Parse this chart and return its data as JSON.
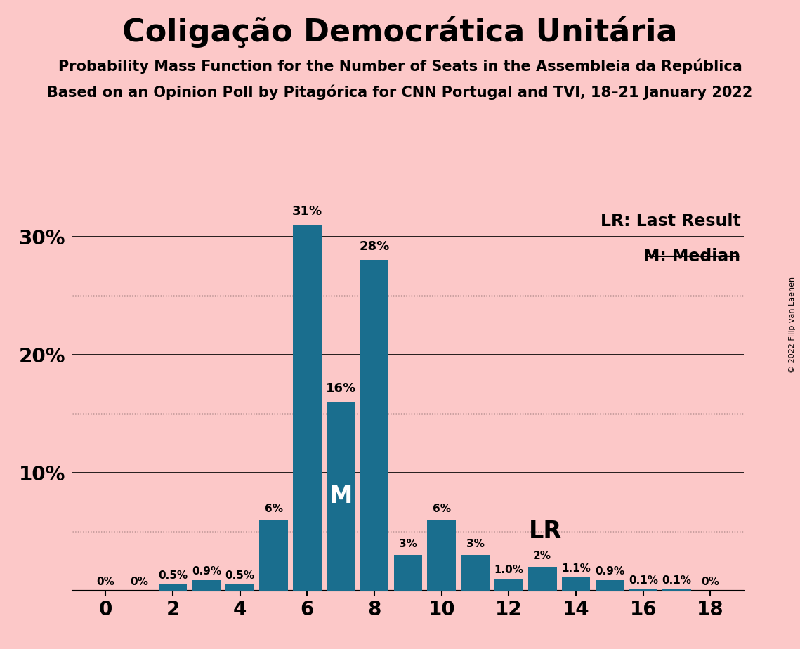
{
  "title": "Coligação Democrática Unitária",
  "subtitle1": "Probability Mass Function for the Number of Seats in the Assembleia da República",
  "subtitle2": "Based on an Opinion Poll by Pitagórica for CNN Portugal and TVI, 18–21 January 2022",
  "copyright": "© 2022 Filip van Laenen",
  "background_color": "#fcc8c8",
  "bar_color": "#1a6e8e",
  "seats": [
    0,
    1,
    2,
    3,
    4,
    5,
    6,
    7,
    8,
    9,
    10,
    11,
    12,
    13,
    14,
    15,
    16,
    17,
    18
  ],
  "probabilities": [
    0.0,
    0.0,
    0.5,
    0.9,
    0.5,
    6.0,
    31.0,
    16.0,
    28.0,
    3.0,
    6.0,
    3.0,
    1.0,
    2.0,
    1.1,
    0.9,
    0.1,
    0.1,
    0.0
  ],
  "labels": [
    "0%",
    "0%",
    "0.5%",
    "0.9%",
    "0.5%",
    "6%",
    "31%",
    "16%",
    "28%",
    "3%",
    "6%",
    "3%",
    "1.0%",
    "2%",
    "1.1%",
    "0.9%",
    "0.1%",
    "0.1%",
    "0%"
  ],
  "median_seat": 7,
  "lr_seat": 12,
  "ylim": [
    0,
    33
  ],
  "ytick_solid": [
    10,
    20,
    30
  ],
  "ytick_dotted": [
    5,
    15,
    25
  ],
  "ytick_labels_pos": [
    10,
    20,
    30
  ],
  "ytick_labels_val": [
    "10%",
    "20%",
    "30%"
  ],
  "lr_label": "LR: Last Result",
  "median_label": "M: Median",
  "median_bar_label": "M",
  "lr_bar_label": "LR",
  "text_color": "#000000",
  "label_fontsize_large": 13,
  "label_fontsize_small": 11,
  "bar_label_threshold": 10
}
